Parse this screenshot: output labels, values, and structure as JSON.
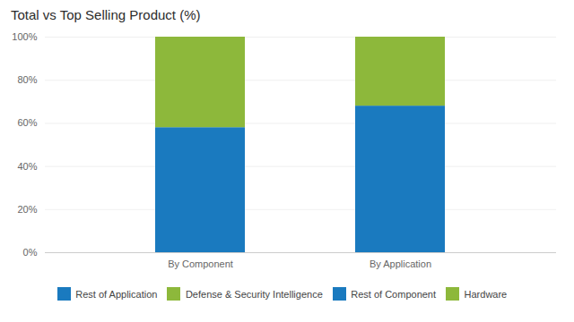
{
  "chart_data": {
    "type": "bar",
    "title": "Total vs Top Selling Product (%)",
    "categories": [
      "By Component",
      "By Application"
    ],
    "series": [
      {
        "name": "Rest of Application",
        "color": "#1a7abf",
        "values": [
          58,
          68
        ]
      },
      {
        "name": "Defense & Security Intelligence",
        "color": "#8db83b",
        "values": [
          42,
          32
        ]
      },
      {
        "name": "Rest of Component",
        "color": "#1a7abf",
        "values": [
          null,
          null
        ]
      },
      {
        "name": "Hardware",
        "color": "#8db83b",
        "values": [
          null,
          null
        ]
      }
    ],
    "stacked": true,
    "ylim": [
      0,
      100
    ],
    "yticks": [
      {
        "value": 0,
        "label": "0%"
      },
      {
        "value": 20,
        "label": "20%"
      },
      {
        "value": 40,
        "label": "40%"
      },
      {
        "value": 60,
        "label": "60%"
      },
      {
        "value": 80,
        "label": "80%"
      },
      {
        "value": 100,
        "label": "100%"
      }
    ],
    "grid": true,
    "legend": "bottom"
  }
}
